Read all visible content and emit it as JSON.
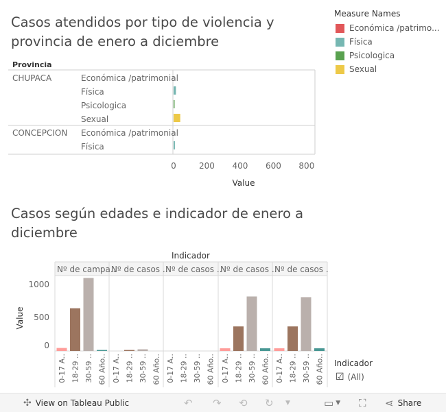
{
  "chart1": {
    "title_line1": "Casos atendidos por tipo de violencia y",
    "title_line2": "provincia de enero a diciembre",
    "row_header": "Provincia",
    "xlabel": "Value",
    "ticks": [
      "0",
      "200",
      "400",
      "600",
      "800"
    ]
  },
  "legend": {
    "title": "Measure Names",
    "items": [
      {
        "label": "Económica /patrimo...",
        "color": "#e15759"
      },
      {
        "label": "Física",
        "color": "#76b7b2"
      },
      {
        "label": "Psicologica",
        "color": "#59a14f"
      },
      {
        "label": "Sexual",
        "color": "#edc948"
      }
    ]
  },
  "chart2": {
    "title_line1": "Casos según edades e indicador de enero a",
    "title_line2": "diciembre",
    "column_header": "Indicador",
    "ylabel": "Value",
    "yticks": [
      "1000",
      "500",
      "0"
    ],
    "panels": [
      "Nº de campa..",
      "Nº de casos ..",
      "Nº de casos ..",
      "Nº de casos ..",
      "Nº de casos .."
    ],
    "categories": [
      "0-17 A..",
      "18-29 ..",
      "30-59 ..",
      "60 Año.."
    ]
  },
  "filter": {
    "title": "Indicador",
    "option": "(All)",
    "checkbox": "☑"
  },
  "toolbar": {
    "view_label": "View on Tableau Public",
    "share_label": "Share"
  },
  "chart_data": [
    {
      "type": "bar",
      "orientation": "horizontal",
      "title": "Casos atendidos por tipo de violencia y provincia de enero a diciembre",
      "row_label": "Provincia",
      "xlabel": "Value",
      "xlim": [
        0,
        850
      ],
      "rows": [
        {
          "provincia": "CHUPACA",
          "measure": "Económica /patrimonial",
          "value": 0
        },
        {
          "provincia": "CHUPACA",
          "measure": "Física",
          "value": 14
        },
        {
          "provincia": "CHUPACA",
          "measure": "Psicologica",
          "value": 6
        },
        {
          "provincia": "CHUPACA",
          "measure": "Sexual",
          "value": 40
        },
        {
          "provincia": "CONCEPCION",
          "measure": "Económica /patrimonial",
          "value": 0
        },
        {
          "provincia": "CONCEPCION",
          "measure": "Física",
          "value": 8
        }
      ]
    },
    {
      "type": "bar",
      "title": "Casos según edades e indicador de enero a diciembre",
      "column_label": "Indicador",
      "ylabel": "Value",
      "ylim": [
        0,
        1100
      ],
      "categories": [
        "0-17 A..",
        "18-29 ..",
        "30-59 ..",
        "60 Año.."
      ],
      "colors": [
        "#ff9d9a",
        "#9c755f",
        "#bab0ac",
        "#499894"
      ],
      "panels": [
        {
          "name": "Nº de campa..",
          "values": [
            45,
            635,
            1085,
            15
          ]
        },
        {
          "name": "Nº de casos ..",
          "values": [
            0,
            5,
            25,
            0
          ]
        },
        {
          "name": "Nº de casos ..",
          "values": [
            0,
            0,
            0,
            0
          ]
        },
        {
          "name": "Nº de casos ..",
          "values": [
            40,
            365,
            810,
            40
          ]
        },
        {
          "name": "Nº de casos ..",
          "values": [
            40,
            365,
            800,
            40
          ]
        }
      ]
    }
  ]
}
